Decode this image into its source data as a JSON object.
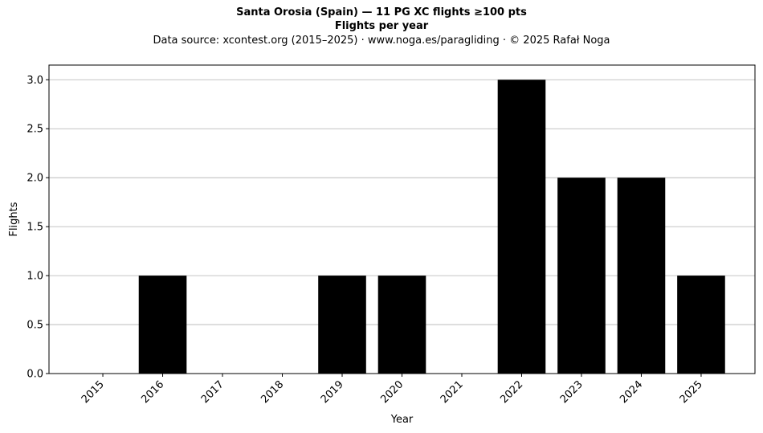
{
  "chart_data": {
    "type": "bar",
    "title": "Santa Orosia (Spain)  —  11 PG XC flights ≥100 pts",
    "subtitle": "Flights per year",
    "source_note": "Data source: xcontest.org (2015–2025)  ·  www.noga.es/paragliding  ·  © 2025 Rafał Noga",
    "xlabel": "Year",
    "ylabel": "Flights",
    "categories": [
      "2015",
      "2016",
      "2017",
      "2018",
      "2019",
      "2020",
      "2021",
      "2022",
      "2023",
      "2024",
      "2025"
    ],
    "values": [
      0,
      1,
      0,
      0,
      1,
      1,
      0,
      3,
      2,
      2,
      1
    ],
    "ylim": [
      0,
      3.15
    ],
    "yticks": [
      "0.0",
      "0.5",
      "1.0",
      "1.5",
      "2.0",
      "2.5",
      "3.0"
    ],
    "grid": "y",
    "bar_color": "#000000",
    "grid_color": "#b0b0b0"
  }
}
